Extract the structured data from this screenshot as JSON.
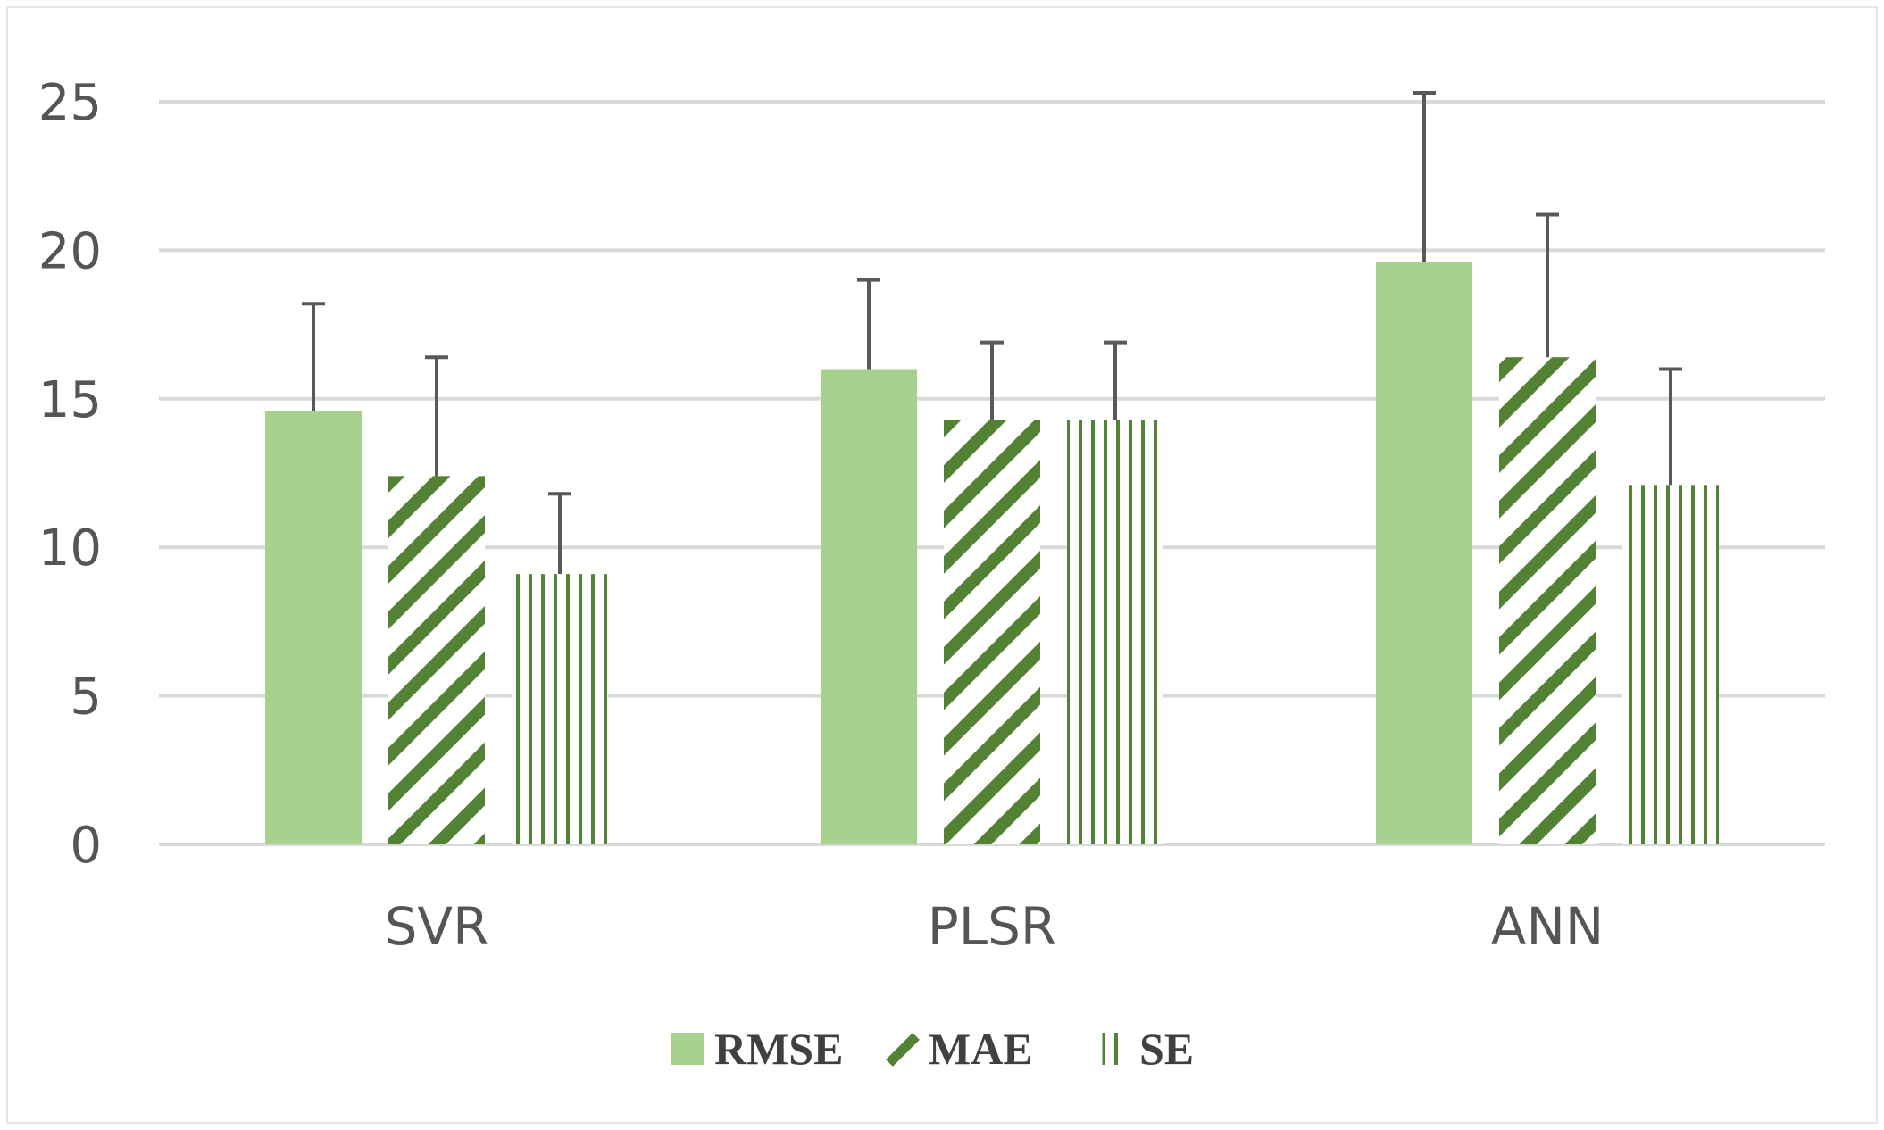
{
  "chart_data": {
    "type": "bar",
    "categories": [
      "SVR",
      "PLSR",
      "ANN"
    ],
    "series": [
      {
        "name": "RMSE",
        "pattern": "solid",
        "values": [
          14.6,
          16.0,
          19.6
        ],
        "error": [
          3.6,
          3.0,
          5.7
        ]
      },
      {
        "name": "MAE",
        "pattern": "diagonal",
        "values": [
          12.4,
          14.3,
          16.4
        ],
        "error": [
          4.0,
          2.6,
          4.8
        ]
      },
      {
        "name": "SE",
        "pattern": "vertical",
        "values": [
          9.1,
          14.3,
          12.1
        ],
        "error": [
          2.7,
          2.6,
          3.9
        ]
      }
    ],
    "ylim": [
      0,
      25
    ],
    "yticks": [
      0,
      5,
      10,
      15,
      20,
      25
    ],
    "title": "",
    "xlabel": "",
    "ylabel": "",
    "grid": true,
    "legend_position": "bottom-center",
    "colors": {
      "fill_light": "#a9d18e",
      "pattern_dark": "#548235",
      "grid": "#d9d9d9",
      "error_bar": "#595959",
      "text": "#555555"
    }
  }
}
